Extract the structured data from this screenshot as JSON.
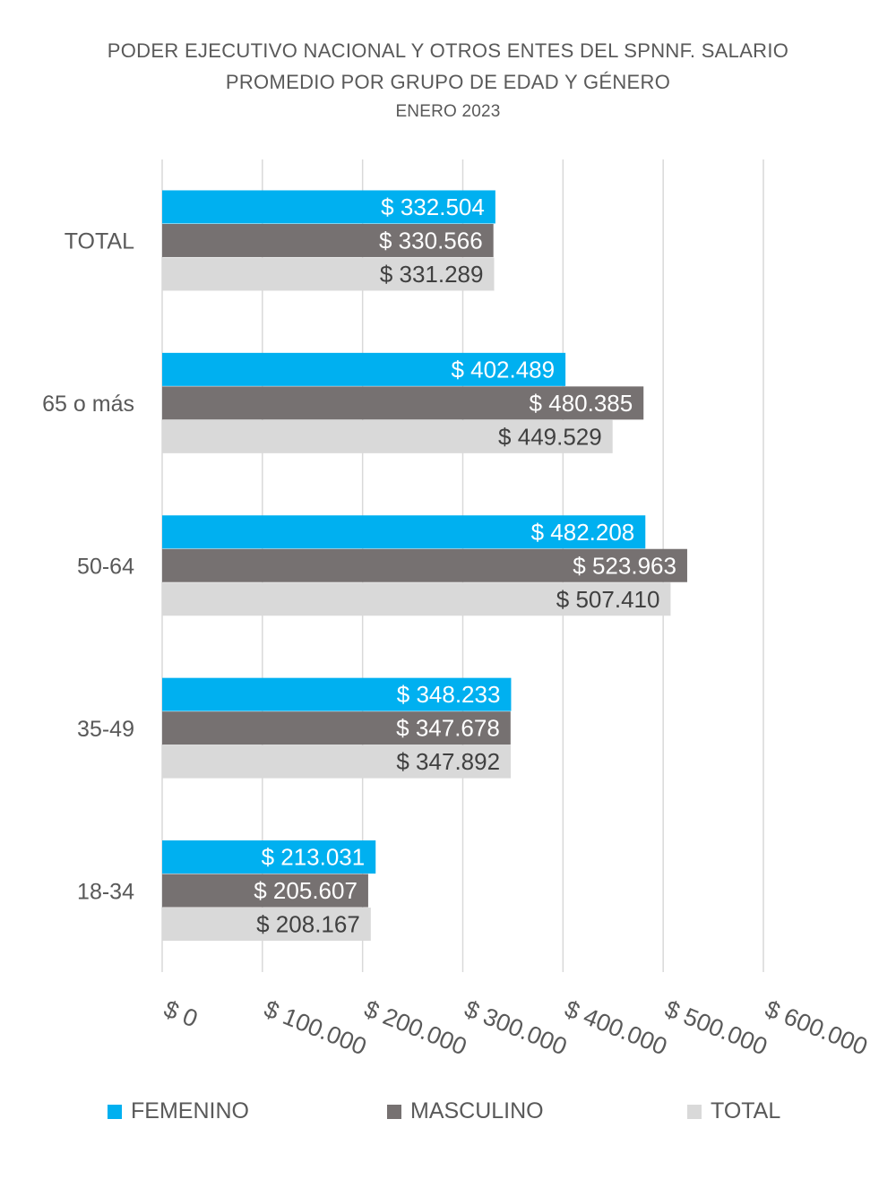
{
  "chart_data": {
    "type": "bar",
    "orientation": "horizontal",
    "title": "PODER EJECUTIVO NACIONAL Y OTROS ENTES DEL SPNNF. SALARIO",
    "title_line2": "PROMEDIO POR GRUPO DE EDAD Y GÉNERO",
    "subtitle": "ENERO 2023",
    "categories": [
      "TOTAL",
      "65 o más",
      "50-64",
      "35-49",
      "18-34"
    ],
    "series": [
      {
        "name": "FEMENINO",
        "color": "#00B0F0",
        "label_color": "#ffffff",
        "values": [
          332504,
          402489,
          482208,
          348233,
          213031
        ],
        "labels": [
          "$ 332.504",
          "$ 402.489",
          "$ 482.208",
          "$ 348.233",
          "$ 213.031"
        ]
      },
      {
        "name": "MASCULINO",
        "color": "#767171",
        "label_color": "#ffffff",
        "values": [
          330566,
          480385,
          523963,
          347678,
          205607
        ],
        "labels": [
          "$ 330.566",
          "$ 480.385",
          "$ 523.963",
          "$ 347.678",
          "$ 205.607"
        ]
      },
      {
        "name": "TOTAL",
        "color": "#D9D9D9",
        "label_color": "#404040",
        "values": [
          331289,
          449529,
          507410,
          347892,
          208167
        ],
        "labels": [
          "$ 331.289",
          "$ 449.529",
          "$ 507.410",
          "$ 347.892",
          "$ 208.167"
        ]
      }
    ],
    "xlim": [
      0,
      600000
    ],
    "x_ticks": [
      0,
      100000,
      200000,
      300000,
      400000,
      500000,
      600000
    ],
    "x_tick_labels": [
      "$ 0",
      "$ 100.000",
      "$ 200.000",
      "$ 300.000",
      "$ 400.000",
      "$ 500.000",
      "$ 600.000"
    ],
    "grid": true,
    "legend_position": "bottom"
  }
}
